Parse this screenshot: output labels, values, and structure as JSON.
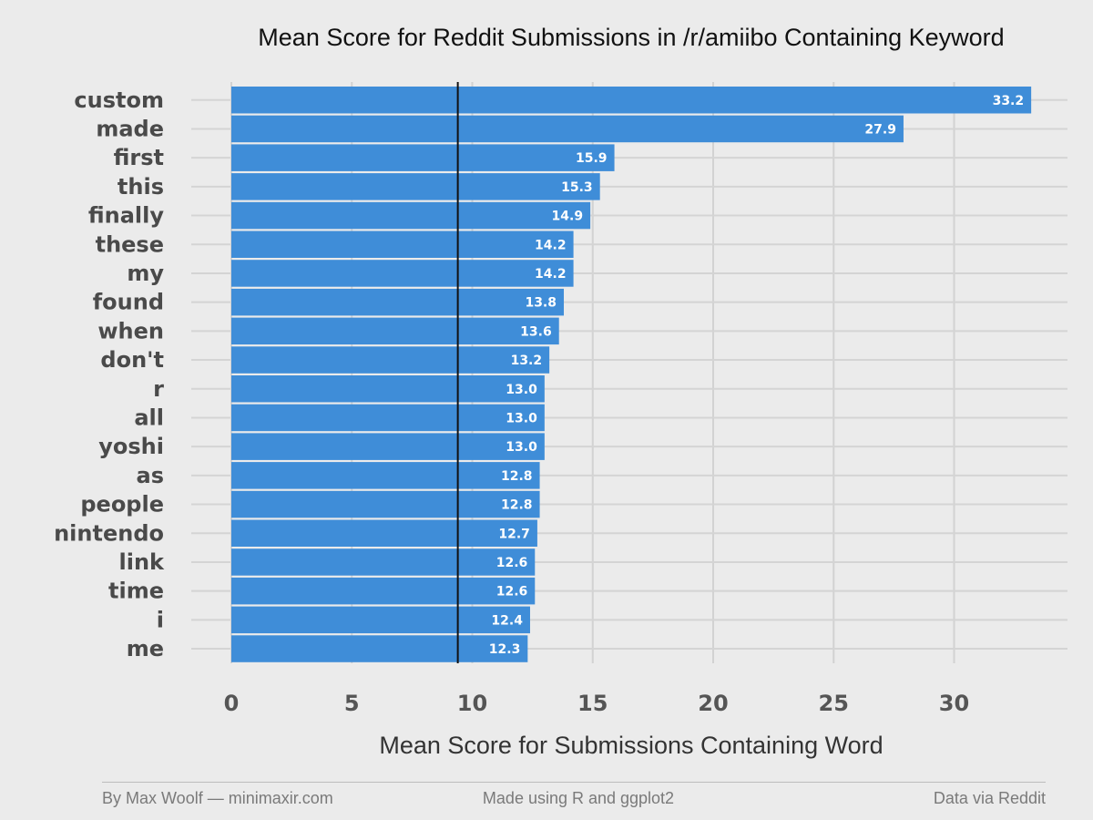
{
  "chart_data": {
    "type": "bar",
    "orientation": "horizontal",
    "title": "Mean Score for Reddit Submissions in /r/amiibo Containing Keyword",
    "xlabel": "Mean Score for Submissions Containing Word",
    "ylabel": "",
    "categories": [
      "custom",
      "made",
      "first",
      "this",
      "finally",
      "these",
      "my",
      "found",
      "when",
      "don't",
      "r",
      "all",
      "yoshi",
      "as",
      "people",
      "nintendo",
      "link",
      "time",
      "i",
      "me"
    ],
    "values": [
      33.2,
      27.9,
      15.9,
      15.3,
      14.9,
      14.2,
      14.2,
      13.8,
      13.6,
      13.2,
      13.0,
      13.0,
      13.0,
      12.8,
      12.8,
      12.7,
      12.6,
      12.6,
      12.4,
      12.3
    ],
    "value_labels": [
      "33.2",
      "27.9",
      "15.9",
      "15.3",
      "14.9",
      "14.2",
      "14.2",
      "13.8",
      "13.6",
      "13.2",
      "13.0",
      "13.0",
      "13.0",
      "12.8",
      "12.8",
      "12.7",
      "12.6",
      "12.6",
      "12.4",
      "12.3"
    ],
    "xticks": [
      "0",
      "5",
      "10",
      "15",
      "20",
      "25",
      "30"
    ],
    "xlim": [
      0,
      34
    ],
    "reference_line": 9.4,
    "grid": true,
    "bar_color": "#3f8dd8",
    "reference_line_color": "#111111",
    "background_color": "#ebebeb"
  },
  "footer": {
    "left": "By Max Woolf — minimaxir.com",
    "center": "Made using R and ggplot2",
    "right": "Data via Reddit"
  }
}
